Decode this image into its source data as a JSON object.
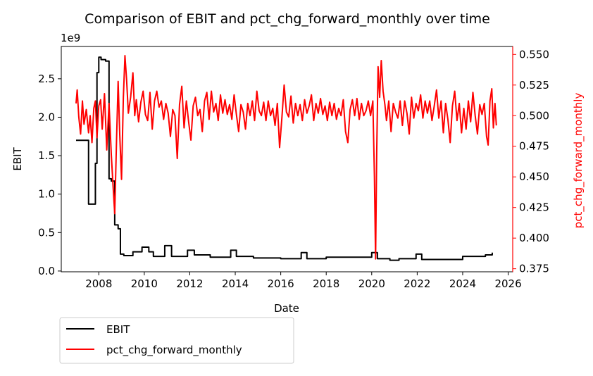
{
  "chart_data": {
    "type": "line",
    "title": "Comparison of EBIT and pct_chg_forward_monthly over time",
    "xlabel": "Date",
    "ylabel_left": "EBIT",
    "ylabel_right": "pct_chg_forward_monthly",
    "left_axis_multiplier": "1e9",
    "xlim": [
      2006.35,
      2026.2
    ],
    "ylim_left": [
      -0.01,
      2.92
    ],
    "ylim_right": [
      0.3725,
      0.5565
    ],
    "x_ticks": [
      2008,
      2010,
      2012,
      2014,
      2016,
      2018,
      2020,
      2022,
      2024,
      2026
    ],
    "x_tick_labels": [
      "2008",
      "2010",
      "2012",
      "2014",
      "2016",
      "2018",
      "2020",
      "2022",
      "2024",
      "2026"
    ],
    "y_left_ticks": [
      0.0,
      0.5,
      1.0,
      1.5,
      2.0,
      2.5
    ],
    "y_left_tick_labels": [
      "0.0",
      "0.5",
      "1.0",
      "1.5",
      "2.0",
      "2.5"
    ],
    "y_right_ticks": [
      0.375,
      0.4,
      0.425,
      0.45,
      0.475,
      0.5,
      0.525,
      0.55
    ],
    "y_right_tick_labels": [
      "0.375",
      "0.400",
      "0.425",
      "0.450",
      "0.475",
      "0.500",
      "0.525",
      "0.550"
    ],
    "grid": false,
    "legend_position": "below-left",
    "legend": [
      "EBIT",
      "pct_chg_forward_monthly"
    ],
    "colors": {
      "EBIT": "#000000",
      "pct_chg_forward_monthly": "#ff0000",
      "right_axis": "#ff0000"
    },
    "series": [
      {
        "name": "EBIT",
        "axis": "left",
        "color": "#000000",
        "step": true,
        "points": [
          [
            2007.0,
            1.7
          ],
          [
            2007.55,
            1.7
          ],
          [
            2007.55,
            0.87
          ],
          [
            2007.85,
            0.87
          ],
          [
            2007.85,
            1.4
          ],
          [
            2007.92,
            1.4
          ],
          [
            2007.92,
            2.58
          ],
          [
            2008.0,
            2.58
          ],
          [
            2008.0,
            2.78
          ],
          [
            2008.1,
            2.78
          ],
          [
            2008.1,
            2.75
          ],
          [
            2008.3,
            2.75
          ],
          [
            2008.3,
            2.73
          ],
          [
            2008.45,
            2.73
          ],
          [
            2008.45,
            1.2
          ],
          [
            2008.55,
            1.2
          ],
          [
            2008.55,
            1.17
          ],
          [
            2008.7,
            1.17
          ],
          [
            2008.7,
            0.6
          ],
          [
            2008.85,
            0.6
          ],
          [
            2008.85,
            0.55
          ],
          [
            2008.95,
            0.55
          ],
          [
            2008.95,
            0.22
          ],
          [
            2009.1,
            0.22
          ],
          [
            2009.1,
            0.2
          ],
          [
            2009.5,
            0.2
          ],
          [
            2009.5,
            0.25
          ],
          [
            2009.9,
            0.25
          ],
          [
            2009.9,
            0.31
          ],
          [
            2010.2,
            0.31
          ],
          [
            2010.2,
            0.25
          ],
          [
            2010.4,
            0.25
          ],
          [
            2010.4,
            0.19
          ],
          [
            2010.9,
            0.19
          ],
          [
            2010.9,
            0.33
          ],
          [
            2011.2,
            0.33
          ],
          [
            2011.2,
            0.19
          ],
          [
            2011.9,
            0.19
          ],
          [
            2011.9,
            0.27
          ],
          [
            2012.2,
            0.27
          ],
          [
            2012.2,
            0.21
          ],
          [
            2012.9,
            0.21
          ],
          [
            2012.9,
            0.18
          ],
          [
            2013.8,
            0.18
          ],
          [
            2013.8,
            0.27
          ],
          [
            2014.05,
            0.27
          ],
          [
            2014.05,
            0.19
          ],
          [
            2014.8,
            0.19
          ],
          [
            2014.8,
            0.17
          ],
          [
            2016.0,
            0.17
          ],
          [
            2016.0,
            0.16
          ],
          [
            2016.9,
            0.16
          ],
          [
            2016.9,
            0.24
          ],
          [
            2017.15,
            0.24
          ],
          [
            2017.15,
            0.16
          ],
          [
            2018.0,
            0.16
          ],
          [
            2018.0,
            0.18
          ],
          [
            2020.0,
            0.18
          ],
          [
            2020.0,
            0.24
          ],
          [
            2020.25,
            0.24
          ],
          [
            2020.25,
            0.16
          ],
          [
            2020.8,
            0.16
          ],
          [
            2020.8,
            0.14
          ],
          [
            2021.2,
            0.14
          ],
          [
            2021.2,
            0.16
          ],
          [
            2021.95,
            0.16
          ],
          [
            2021.95,
            0.22
          ],
          [
            2022.2,
            0.22
          ],
          [
            2022.2,
            0.15
          ],
          [
            2024.0,
            0.15
          ],
          [
            2024.0,
            0.19
          ],
          [
            2025.0,
            0.19
          ],
          [
            2025.0,
            0.21
          ],
          [
            2025.3,
            0.21
          ],
          [
            2025.3,
            0.24
          ]
        ]
      },
      {
        "name": "pct_chg_forward_monthly",
        "axis": "right",
        "color": "#ff0000",
        "step": false,
        "points": [
          [
            2007.0,
            0.51
          ],
          [
            2007.05,
            0.521
          ],
          [
            2007.12,
            0.499
          ],
          [
            2007.2,
            0.485
          ],
          [
            2007.28,
            0.512
          ],
          [
            2007.35,
            0.493
          ],
          [
            2007.45,
            0.505
          ],
          [
            2007.55,
            0.486
          ],
          [
            2007.62,
            0.5
          ],
          [
            2007.7,
            0.478
          ],
          [
            2007.78,
            0.506
          ],
          [
            2007.85,
            0.512
          ],
          [
            2007.92,
            0.482
          ],
          [
            2008.0,
            0.508
          ],
          [
            2008.08,
            0.513
          ],
          [
            2008.15,
            0.489
          ],
          [
            2008.25,
            0.518
          ],
          [
            2008.35,
            0.472
          ],
          [
            2008.45,
            0.51
          ],
          [
            2008.55,
            0.468
          ],
          [
            2008.62,
            0.445
          ],
          [
            2008.7,
            0.42
          ],
          [
            2008.78,
            0.48
          ],
          [
            2008.85,
            0.528
          ],
          [
            2008.92,
            0.485
          ],
          [
            2009.0,
            0.448
          ],
          [
            2009.08,
            0.515
          ],
          [
            2009.15,
            0.549
          ],
          [
            2009.22,
            0.53
          ],
          [
            2009.3,
            0.502
          ],
          [
            2009.4,
            0.515
          ],
          [
            2009.5,
            0.535
          ],
          [
            2009.58,
            0.5
          ],
          [
            2009.65,
            0.513
          ],
          [
            2009.75,
            0.495
          ],
          [
            2009.85,
            0.511
          ],
          [
            2009.95,
            0.52
          ],
          [
            2010.05,
            0.501
          ],
          [
            2010.15,
            0.496
          ],
          [
            2010.25,
            0.519
          ],
          [
            2010.35,
            0.489
          ],
          [
            2010.45,
            0.512
          ],
          [
            2010.55,
            0.52
          ],
          [
            2010.65,
            0.507
          ],
          [
            2010.75,
            0.512
          ],
          [
            2010.85,
            0.497
          ],
          [
            2010.95,
            0.51
          ],
          [
            2011.05,
            0.502
          ],
          [
            2011.15,
            0.483
          ],
          [
            2011.25,
            0.505
          ],
          [
            2011.35,
            0.5
          ],
          [
            2011.45,
            0.465
          ],
          [
            2011.55,
            0.509
          ],
          [
            2011.65,
            0.524
          ],
          [
            2011.75,
            0.49
          ],
          [
            2011.85,
            0.512
          ],
          [
            2011.95,
            0.495
          ],
          [
            2012.05,
            0.48
          ],
          [
            2012.15,
            0.508
          ],
          [
            2012.25,
            0.515
          ],
          [
            2012.35,
            0.5
          ],
          [
            2012.45,
            0.505
          ],
          [
            2012.55,
            0.487
          ],
          [
            2012.65,
            0.512
          ],
          [
            2012.75,
            0.519
          ],
          [
            2012.85,
            0.497
          ],
          [
            2012.95,
            0.52
          ],
          [
            2013.05,
            0.503
          ],
          [
            2013.15,
            0.51
          ],
          [
            2013.25,
            0.496
          ],
          [
            2013.35,
            0.517
          ],
          [
            2013.45,
            0.502
          ],
          [
            2013.55,
            0.513
          ],
          [
            2013.65,
            0.501
          ],
          [
            2013.75,
            0.509
          ],
          [
            2013.85,
            0.497
          ],
          [
            2013.95,
            0.517
          ],
          [
            2014.05,
            0.501
          ],
          [
            2014.15,
            0.487
          ],
          [
            2014.25,
            0.509
          ],
          [
            2014.35,
            0.503
          ],
          [
            2014.45,
            0.489
          ],
          [
            2014.55,
            0.51
          ],
          [
            2014.65,
            0.5
          ],
          [
            2014.75,
            0.512
          ],
          [
            2014.85,
            0.496
          ],
          [
            2014.95,
            0.52
          ],
          [
            2015.05,
            0.504
          ],
          [
            2015.15,
            0.5
          ],
          [
            2015.25,
            0.511
          ],
          [
            2015.35,
            0.496
          ],
          [
            2015.45,
            0.512
          ],
          [
            2015.55,
            0.5
          ],
          [
            2015.65,
            0.506
          ],
          [
            2015.75,
            0.492
          ],
          [
            2015.85,
            0.51
          ],
          [
            2015.95,
            0.474
          ],
          [
            2016.05,
            0.498
          ],
          [
            2016.15,
            0.525
          ],
          [
            2016.25,
            0.503
          ],
          [
            2016.35,
            0.499
          ],
          [
            2016.45,
            0.516
          ],
          [
            2016.55,
            0.494
          ],
          [
            2016.65,
            0.51
          ],
          [
            2016.75,
            0.5
          ],
          [
            2016.85,
            0.509
          ],
          [
            2016.95,
            0.496
          ],
          [
            2017.05,
            0.513
          ],
          [
            2017.15,
            0.502
          ],
          [
            2017.25,
            0.508
          ],
          [
            2017.35,
            0.517
          ],
          [
            2017.45,
            0.496
          ],
          [
            2017.55,
            0.51
          ],
          [
            2017.65,
            0.502
          ],
          [
            2017.75,
            0.514
          ],
          [
            2017.85,
            0.501
          ],
          [
            2017.95,
            0.508
          ],
          [
            2018.05,
            0.496
          ],
          [
            2018.15,
            0.511
          ],
          [
            2018.25,
            0.5
          ],
          [
            2018.35,
            0.51
          ],
          [
            2018.45,
            0.497
          ],
          [
            2018.55,
            0.506
          ],
          [
            2018.65,
            0.5
          ],
          [
            2018.75,
            0.513
          ],
          [
            2018.85,
            0.487
          ],
          [
            2018.95,
            0.478
          ],
          [
            2019.05,
            0.505
          ],
          [
            2019.15,
            0.513
          ],
          [
            2019.25,
            0.5
          ],
          [
            2019.35,
            0.514
          ],
          [
            2019.45,
            0.497
          ],
          [
            2019.55,
            0.51
          ],
          [
            2019.65,
            0.5
          ],
          [
            2019.75,
            0.504
          ],
          [
            2019.85,
            0.512
          ],
          [
            2019.95,
            0.5
          ],
          [
            2020.05,
            0.512
          ],
          [
            2020.12,
            0.45
          ],
          [
            2020.17,
            0.383
          ],
          [
            2020.22,
            0.47
          ],
          [
            2020.28,
            0.54
          ],
          [
            2020.35,
            0.515
          ],
          [
            2020.42,
            0.545
          ],
          [
            2020.5,
            0.52
          ],
          [
            2020.58,
            0.509
          ],
          [
            2020.65,
            0.496
          ],
          [
            2020.75,
            0.512
          ],
          [
            2020.85,
            0.487
          ],
          [
            2020.95,
            0.51
          ],
          [
            2021.05,
            0.503
          ],
          [
            2021.15,
            0.498
          ],
          [
            2021.25,
            0.512
          ],
          [
            2021.35,
            0.492
          ],
          [
            2021.45,
            0.512
          ],
          [
            2021.55,
            0.502
          ],
          [
            2021.65,
            0.485
          ],
          [
            2021.75,
            0.515
          ],
          [
            2021.85,
            0.498
          ],
          [
            2021.95,
            0.51
          ],
          [
            2022.05,
            0.504
          ],
          [
            2022.15,
            0.517
          ],
          [
            2022.25,
            0.498
          ],
          [
            2022.35,
            0.512
          ],
          [
            2022.45,
            0.502
          ],
          [
            2022.55,
            0.512
          ],
          [
            2022.65,
            0.496
          ],
          [
            2022.75,
            0.508
          ],
          [
            2022.85,
            0.521
          ],
          [
            2022.95,
            0.498
          ],
          [
            2023.05,
            0.512
          ],
          [
            2023.15,
            0.486
          ],
          [
            2023.25,
            0.51
          ],
          [
            2023.35,
            0.497
          ],
          [
            2023.45,
            0.478
          ],
          [
            2023.55,
            0.508
          ],
          [
            2023.65,
            0.52
          ],
          [
            2023.75,
            0.496
          ],
          [
            2023.85,
            0.51
          ],
          [
            2023.95,
            0.486
          ],
          [
            2024.05,
            0.506
          ],
          [
            2024.15,
            0.489
          ],
          [
            2024.25,
            0.512
          ],
          [
            2024.35,
            0.495
          ],
          [
            2024.45,
            0.519
          ],
          [
            2024.55,
            0.5
          ],
          [
            2024.65,
            0.485
          ],
          [
            2024.75,
            0.509
          ],
          [
            2024.85,
            0.501
          ],
          [
            2024.95,
            0.51
          ],
          [
            2025.05,
            0.483
          ],
          [
            2025.12,
            0.476
          ],
          [
            2025.2,
            0.512
          ],
          [
            2025.28,
            0.522
          ],
          [
            2025.35,
            0.49
          ],
          [
            2025.42,
            0.51
          ],
          [
            2025.48,
            0.492
          ]
        ]
      }
    ]
  }
}
